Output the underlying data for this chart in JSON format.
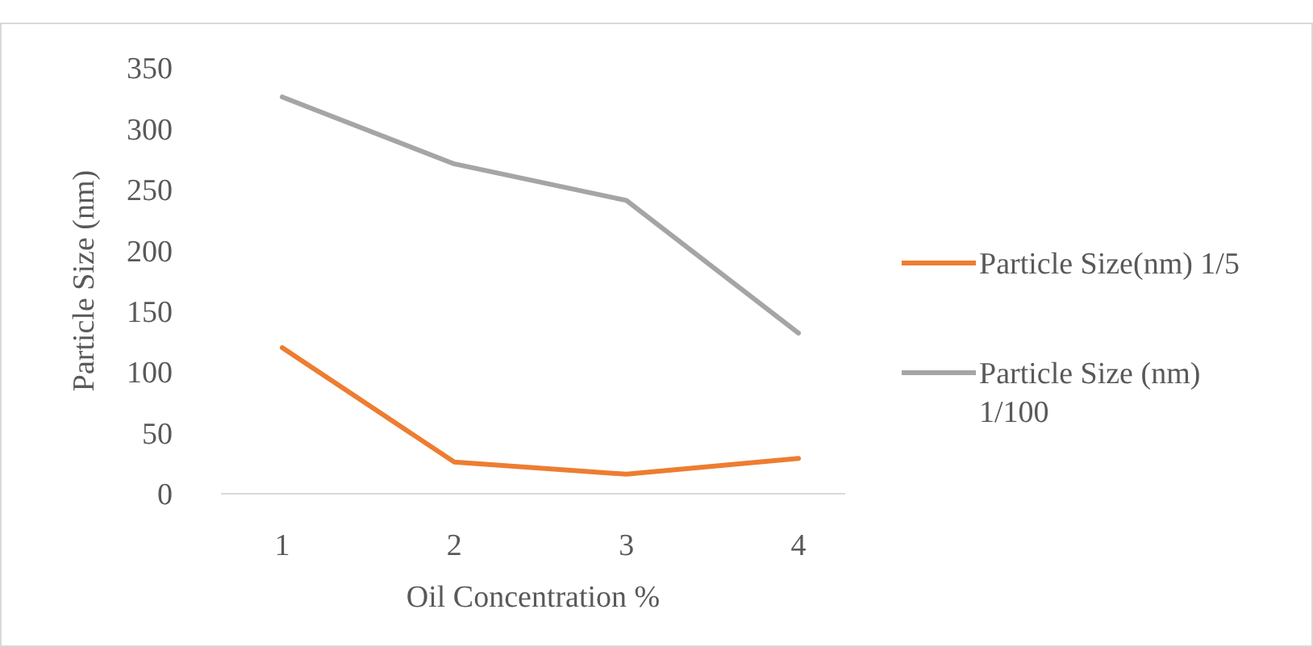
{
  "chart_data": {
    "type": "line",
    "xlabel": "Oil Concentration %",
    "ylabel": "Particle Size (nm)",
    "categories": [
      "1",
      "2",
      "3",
      "4"
    ],
    "series": [
      {
        "name": "Particle Size(nm) 1/5",
        "color": "#ed7d31",
        "values": [
          120,
          26,
          16,
          29
        ]
      },
      {
        "name": "Particle Size (nm) 1/100",
        "color": "#a5a5a5",
        "values": [
          326,
          271,
          241,
          132
        ]
      }
    ],
    "ylim": [
      0,
      350
    ],
    "yticks": [
      0,
      50,
      100,
      150,
      200,
      250,
      300,
      350
    ],
    "grid": false,
    "legend": "right",
    "marker": "none",
    "line_style": "solid"
  }
}
